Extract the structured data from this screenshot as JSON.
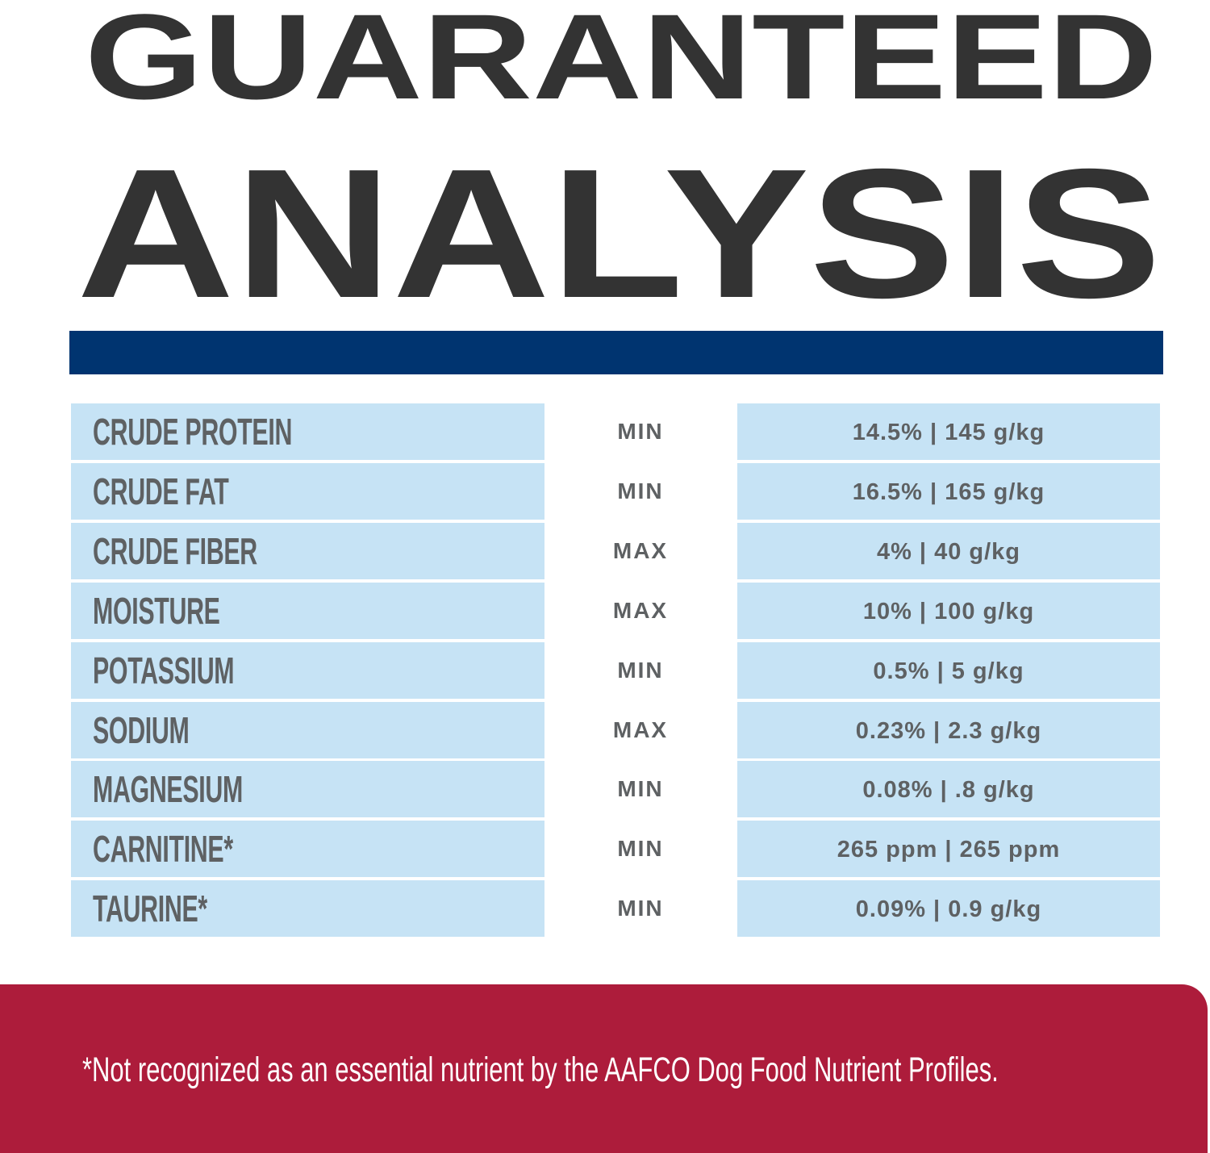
{
  "title": {
    "line1": "GUARANTEED",
    "line2": "ANALYSIS"
  },
  "colors": {
    "title": "#333333",
    "bar": "#003470",
    "cell": "#c6e3f5",
    "text": "#5e6163",
    "footer": "#ad1c3b"
  },
  "rows": [
    {
      "nutrient": "CRUDE PROTEIN",
      "type": "MIN",
      "value": "14.5% | 145 g/kg"
    },
    {
      "nutrient": "CRUDE FAT",
      "type": "MIN",
      "value": "16.5% | 165 g/kg"
    },
    {
      "nutrient": "CRUDE FIBER",
      "type": "MAX",
      "value": "4% | 40 g/kg"
    },
    {
      "nutrient": "MOISTURE",
      "type": "MAX",
      "value": "10% | 100 g/kg"
    },
    {
      "nutrient": "POTASSIUM",
      "type": "MIN",
      "value": "0.5% | 5 g/kg"
    },
    {
      "nutrient": "SODIUM",
      "type": "MAX",
      "value": "0.23% | 2.3 g/kg"
    },
    {
      "nutrient": "MAGNESIUM",
      "type": "MIN",
      "value": "0.08% | .8 g/kg"
    },
    {
      "nutrient": "CARNITINE*",
      "type": "MIN",
      "value": "265 ppm | 265 ppm"
    },
    {
      "nutrient": "TAURINE*",
      "type": "MIN",
      "value": "0.09% | 0.9 g/kg"
    }
  ],
  "footnote": "*Not recognized as an essential nutrient by the AAFCO Dog Food Nutrient Profiles."
}
